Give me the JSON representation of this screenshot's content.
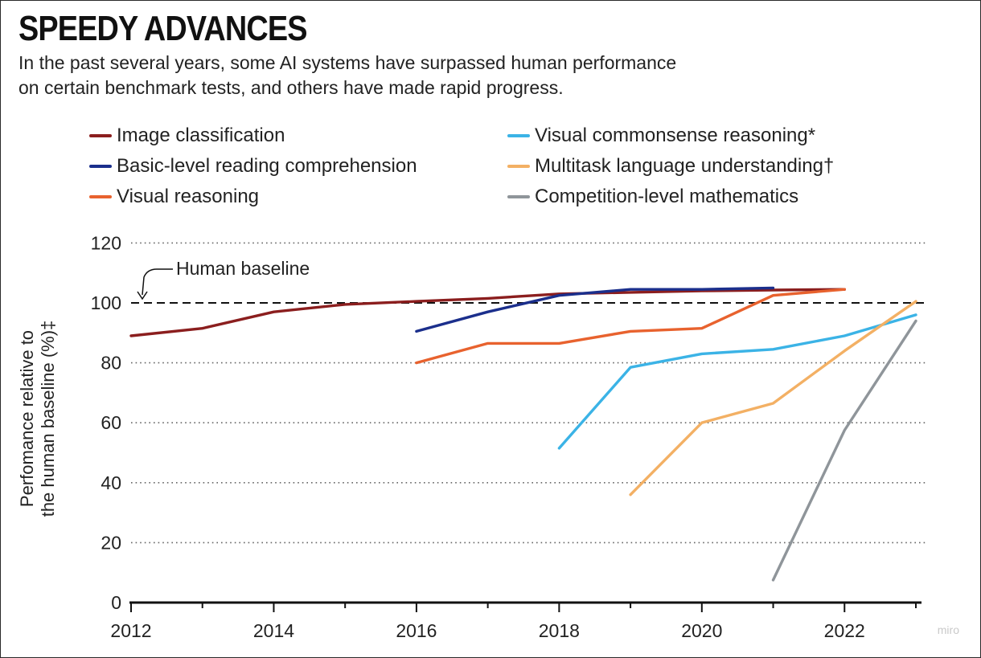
{
  "header": {
    "title": "SPEEDY ADVANCES",
    "subtitle_line1": "In the past several years, some AI systems have surpassed human performance",
    "subtitle_line2": "on certain benchmark tests, and others have made rapid progress."
  },
  "watermark": "miro",
  "chart_data": {
    "type": "line",
    "ylabel_line1": "Perfomance relative to",
    "ylabel_line2": "the human baseline (%)‡",
    "ylim": [
      0,
      120
    ],
    "xlim": [
      2012,
      2023
    ],
    "x_ticks": [
      "2012",
      "2014",
      "2016",
      "2018",
      "2020",
      "2022"
    ],
    "y_ticks": [
      "0",
      "20",
      "40",
      "60",
      "80",
      "100",
      "120"
    ],
    "grid": "horizontal dotted",
    "baseline": {
      "value": 100,
      "label": "Human baseline"
    },
    "legend_placement": "top, two columns",
    "series": [
      {
        "name": "Image classification",
        "color": "#8b1e1e",
        "x": [
          2012,
          2013,
          2014,
          2015,
          2016,
          2017,
          2018,
          2019,
          2020,
          2021,
          2022
        ],
        "y": [
          89,
          91.5,
          97,
          99.5,
          100.5,
          101.5,
          103,
          103.5,
          104,
          104.3,
          104.5
        ]
      },
      {
        "name": "Basic-level reading comprehension",
        "color": "#1b2f8c",
        "x": [
          2016,
          2017,
          2018,
          2019,
          2020,
          2021
        ],
        "y": [
          90.5,
          97,
          102.5,
          104.5,
          104.5,
          105
        ]
      },
      {
        "name": "Visual reasoning",
        "color": "#e8622e",
        "x": [
          2016,
          2017,
          2018,
          2019,
          2020,
          2021,
          2022
        ],
        "y": [
          80,
          86.5,
          86.5,
          90.5,
          91.5,
          102.5,
          104.5
        ]
      },
      {
        "name": "Visual commonsense reasoning*",
        "color": "#3bb3e6",
        "x": [
          2018,
          2019,
          2020,
          2021,
          2022,
          2023
        ],
        "y": [
          51.5,
          78.5,
          83,
          84.5,
          89,
          96
        ]
      },
      {
        "name": "Multitask language understanding†",
        "color": "#f3b064",
        "x": [
          2019,
          2020,
          2021,
          2022,
          2023
        ],
        "y": [
          36,
          60,
          66.5,
          84,
          100.5
        ]
      },
      {
        "name": "Competition-level mathematics",
        "color": "#8f959a",
        "x": [
          2021,
          2022,
          2023
        ],
        "y": [
          7.5,
          57.5,
          94
        ]
      }
    ]
  }
}
